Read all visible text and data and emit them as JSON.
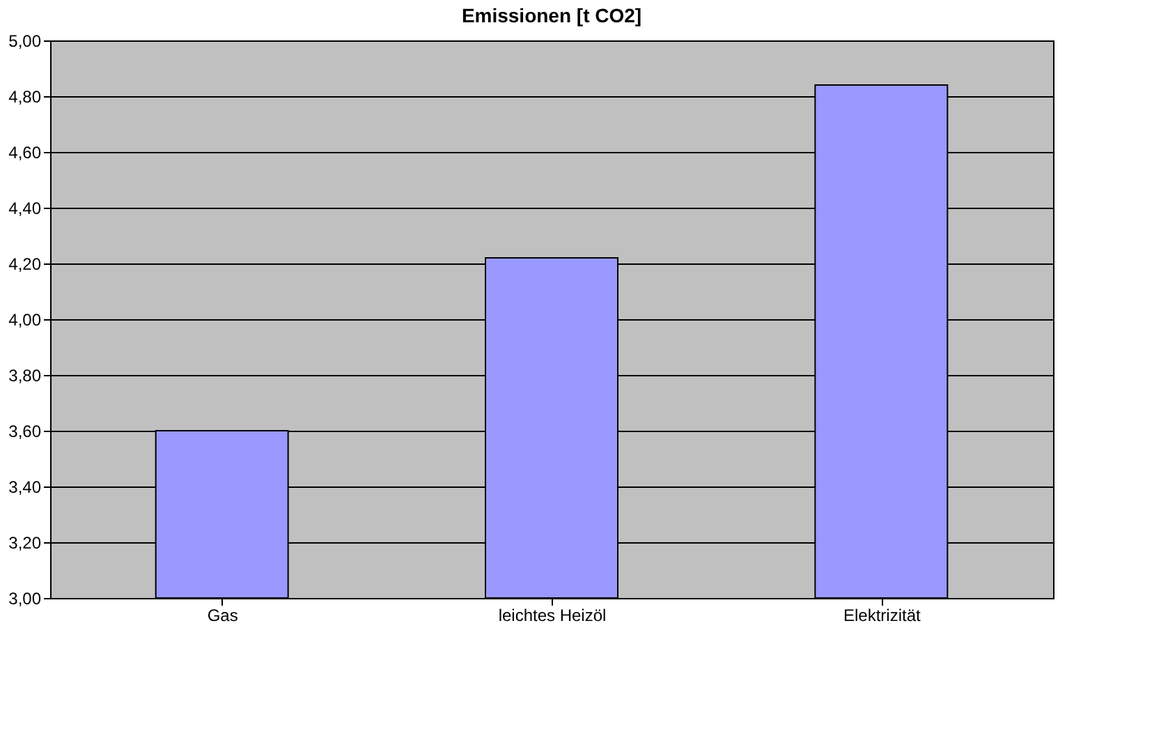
{
  "chart_data": {
    "type": "bar",
    "title": "Emissionen [t CO2]",
    "categories": [
      "Gas",
      "leichtes Heizöl",
      "Elektrizität"
    ],
    "values": [
      3.6,
      4.22,
      4.84
    ],
    "color": "#9999ff",
    "ylim": [
      3,
      5
    ],
    "yticks": [
      {
        "value": 3,
        "label": "3,00"
      },
      {
        "value": 3.2,
        "label": "3,20"
      },
      {
        "value": 3.4,
        "label": "3,40"
      },
      {
        "value": 3.6,
        "label": "3,60"
      },
      {
        "value": 3.8,
        "label": "3,80"
      },
      {
        "value": 4,
        "label": "4,00"
      },
      {
        "value": 4.2,
        "label": "4,20"
      },
      {
        "value": 4.4,
        "label": "4,40"
      },
      {
        "value": 4.6,
        "label": "4,60"
      },
      {
        "value": 4.8,
        "label": "4,80"
      },
      {
        "value": 5,
        "label": "5,00"
      }
    ],
    "grid": "y"
  }
}
